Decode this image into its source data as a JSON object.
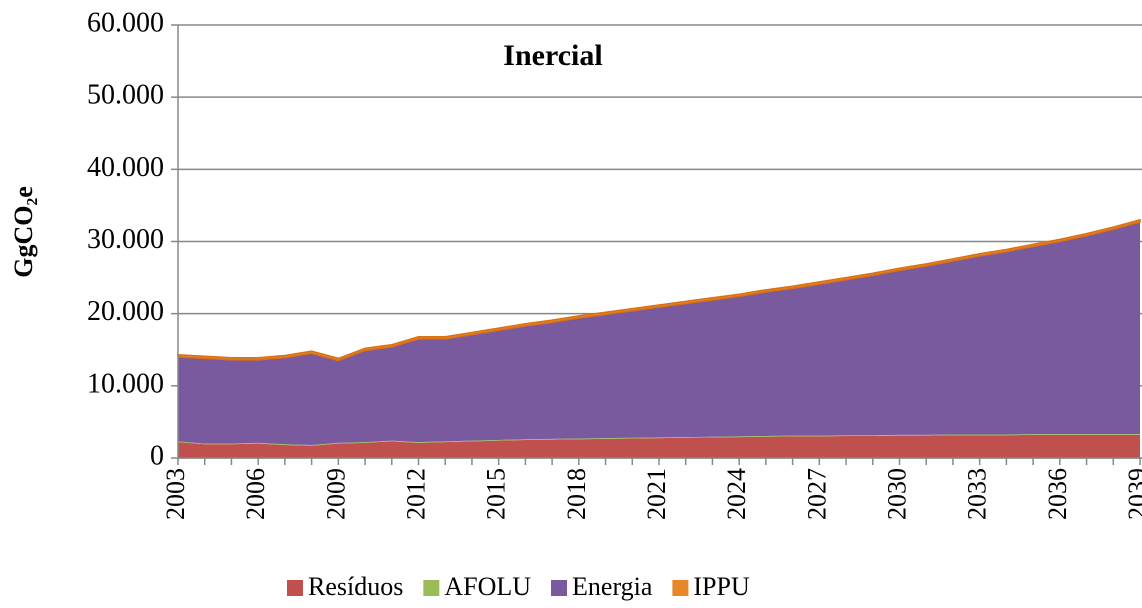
{
  "chart_data": {
    "type": "stacked_area",
    "title": "Inercial",
    "ylabel": "GgCO₂e",
    "x": [
      2003,
      2004,
      2005,
      2006,
      2007,
      2008,
      2009,
      2010,
      2011,
      2012,
      2013,
      2014,
      2015,
      2016,
      2017,
      2018,
      2019,
      2020,
      2021,
      2022,
      2023,
      2024,
      2025,
      2026,
      2027,
      2028,
      2029,
      2030,
      2031,
      2032,
      2033,
      2034,
      2035,
      2036,
      2037,
      2038,
      2039
    ],
    "xlim": [
      2003,
      2039
    ],
    "xticks": [
      2003,
      2006,
      2009,
      2012,
      2015,
      2018,
      2021,
      2024,
      2027,
      2030,
      2033,
      2036,
      2039
    ],
    "ylim": [
      0,
      60000
    ],
    "yticks": [
      0,
      {
        "value": 10000,
        "label": "10.000"
      },
      {
        "value": 20000,
        "label": "20.000"
      },
      {
        "value": 30000,
        "label": "30.000"
      },
      {
        "value": 40000,
        "label": "40.000"
      },
      {
        "value": 50000,
        "label": "50.000"
      },
      {
        "value": 60000,
        "label": "60.000"
      }
    ],
    "grid": true,
    "legend": "bottom",
    "series": [
      {
        "name": "Resíduos",
        "color": "#c0504d",
        "values": [
          2200,
          1900,
          1900,
          2000,
          1800,
          1700,
          2000,
          2100,
          2300,
          2100,
          2200,
          2300,
          2400,
          2500,
          2550,
          2600,
          2650,
          2700,
          2750,
          2800,
          2850,
          2900,
          2950,
          3000,
          3000,
          3050,
          3050,
          3100,
          3100,
          3150,
          3150,
          3150,
          3200,
          3200,
          3200,
          3200,
          3200
        ]
      },
      {
        "name": "AFOLU",
        "color": "#9bbb59",
        "values": [
          100,
          100,
          100,
          100,
          100,
          100,
          100,
          100,
          100,
          100,
          100,
          100,
          100,
          100,
          100,
          100,
          100,
          100,
          100,
          100,
          100,
          100,
          100,
          100,
          100,
          100,
          100,
          100,
          100,
          100,
          100,
          100,
          100,
          100,
          100,
          100,
          100
        ]
      },
      {
        "name": "Energia",
        "color": "#7a5a9e",
        "values": [
          11700,
          11800,
          11600,
          11500,
          12000,
          12700,
          11400,
          12700,
          13000,
          14300,
          14200,
          14700,
          15200,
          15700,
          16150,
          16700,
          17150,
          17600,
          18050,
          18500,
          18950,
          19400,
          19950,
          20400,
          21000,
          21550,
          22150,
          22800,
          23400,
          24050,
          24750,
          25350,
          26000,
          26700,
          27500,
          28400,
          29400
        ]
      },
      {
        "name": "IPPU",
        "color": "#e8862a",
        "values": [
          300,
          300,
          300,
          300,
          300,
          300,
          300,
          300,
          300,
          300,
          300,
          300,
          300,
          300,
          300,
          300,
          300,
          300,
          300,
          300,
          300,
          300,
          300,
          300,
          300,
          300,
          300,
          300,
          300,
          300,
          300,
          300,
          300,
          300,
          300,
          300,
          300
        ]
      }
    ]
  }
}
